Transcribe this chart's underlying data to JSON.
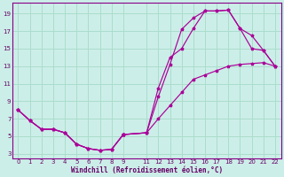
{
  "xlabel": "Windchill (Refroidissement éolien,°C)",
  "bg_color": "#cceee8",
  "grid_color": "#aaddcc",
  "line_color": "#aa0099",
  "xlim": [
    -0.5,
    22.5
  ],
  "ylim": [
    2.5,
    20.2
  ],
  "xticks": [
    0,
    1,
    2,
    3,
    4,
    5,
    6,
    7,
    8,
    9,
    11,
    12,
    13,
    14,
    15,
    16,
    17,
    18,
    19,
    20,
    21,
    22
  ],
  "yticks": [
    3,
    5,
    7,
    9,
    11,
    13,
    15,
    17,
    19
  ],
  "shared_x": [
    0,
    1,
    2,
    3,
    4,
    5,
    6,
    7,
    8,
    9
  ],
  "shared_y": [
    8.0,
    6.8,
    5.8,
    5.8,
    5.4,
    4.1,
    3.6,
    3.4,
    3.5,
    5.2
  ],
  "curve1_x": [
    9,
    11,
    12,
    13,
    14,
    15,
    16,
    17,
    18,
    19,
    20,
    21,
    22
  ],
  "curve1_y": [
    5.2,
    5.4,
    7.0,
    8.5,
    10.0,
    11.5,
    12.0,
    12.5,
    13.0,
    13.2,
    13.3,
    13.4,
    13.0
  ],
  "curve2_x": [
    9,
    11,
    12,
    13,
    14,
    15,
    16,
    17,
    18,
    19,
    20,
    21,
    22
  ],
  "curve2_y": [
    5.2,
    5.4,
    9.5,
    13.2,
    17.2,
    18.5,
    19.3,
    19.3,
    19.4,
    17.3,
    16.5,
    14.8,
    13.0
  ],
  "curve3_x": [
    9,
    11,
    12,
    13,
    14,
    15,
    16,
    17,
    18,
    19,
    20,
    21,
    22
  ],
  "curve3_y": [
    5.2,
    5.4,
    10.5,
    14.0,
    15.0,
    17.3,
    19.3,
    19.3,
    19.4,
    17.3,
    15.0,
    14.8,
    13.0
  ]
}
